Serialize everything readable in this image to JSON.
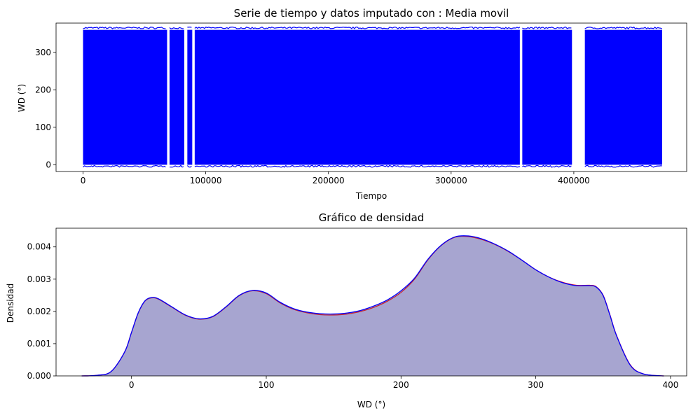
{
  "chart_data": [
    {
      "type": "line",
      "title": "Serie de tiempo y datos imputado con : Media movil",
      "xlabel": "Tiempo",
      "ylabel": "WD (°)",
      "xlim": [
        -22000,
        492000
      ],
      "ylim": [
        -18,
        378
      ],
      "xticks": [
        0,
        100000,
        200000,
        300000,
        400000
      ],
      "xtick_labels": [
        "0",
        "100000",
        "200000",
        "300000",
        "400000"
      ],
      "yticks": [
        0,
        100,
        200,
        300
      ],
      "ytick_labels": [
        "0",
        "100",
        "200",
        "300"
      ],
      "series": [
        {
          "color": "#0000ff",
          "value_range": [
            0,
            360
          ],
          "segments": [
            [
              0,
              68500
            ],
            [
              70500,
              82500
            ],
            [
              85000,
              89000
            ],
            [
              91000,
              356000
            ],
            [
              358000,
              398500
            ],
            [
              409000,
              472000
            ]
          ]
        }
      ],
      "grid": false
    },
    {
      "type": "area",
      "title": "Gráfico de densidad",
      "xlabel": "WD (°)",
      "ylabel": "Densidad",
      "xlim": [
        -56,
        412
      ],
      "ylim": [
        0,
        0.00458
      ],
      "xticks": [
        0,
        100,
        200,
        300,
        400
      ],
      "xtick_labels": [
        "0",
        "100",
        "200",
        "300",
        "400"
      ],
      "yticks": [
        0,
        0.001,
        0.002,
        0.003,
        0.004
      ],
      "ytick_labels": [
        "0.000",
        "0.001",
        "0.002",
        "0.003",
        "0.004"
      ],
      "series": [
        {
          "color": "#ff0000",
          "fill": "#800080",
          "x": [
            -37,
            -25,
            -15,
            -5,
            0,
            5,
            10,
            15,
            20,
            30,
            40,
            50,
            60,
            70,
            80,
            90,
            100,
            110,
            120,
            130,
            140,
            150,
            160,
            170,
            180,
            190,
            200,
            210,
            220,
            230,
            240,
            250,
            260,
            270,
            280,
            290,
            300,
            310,
            320,
            330,
            340,
            345,
            350,
            355,
            360,
            370,
            380,
            395
          ],
          "y": [
            0.0,
            2e-05,
            0.00014,
            0.00075,
            0.00135,
            0.00195,
            0.00232,
            0.00242,
            0.00238,
            0.00213,
            0.00188,
            0.00176,
            0.00183,
            0.00213,
            0.00249,
            0.00264,
            0.00255,
            0.00227,
            0.00207,
            0.00196,
            0.0019,
            0.00189,
            0.00192,
            0.002,
            0.00213,
            0.00232,
            0.00259,
            0.003,
            0.0036,
            0.00405,
            0.0043,
            0.00432,
            0.00423,
            0.00407,
            0.00385,
            0.00358,
            0.00329,
            0.00306,
            0.0029,
            0.00281,
            0.00281,
            0.00276,
            0.0025,
            0.0019,
            0.00125,
            0.00035,
            6e-05,
            0.0
          ]
        },
        {
          "color": "#0000ff",
          "fill": "#1f77b4",
          "x": [
            -37,
            -25,
            -15,
            -5,
            0,
            5,
            10,
            15,
            20,
            30,
            40,
            50,
            60,
            70,
            80,
            90,
            100,
            110,
            120,
            130,
            140,
            150,
            160,
            170,
            180,
            190,
            200,
            210,
            220,
            230,
            240,
            250,
            260,
            270,
            280,
            290,
            300,
            310,
            320,
            330,
            340,
            345,
            350,
            355,
            360,
            370,
            380,
            395
          ],
          "y": [
            0.0,
            2e-05,
            0.00014,
            0.00075,
            0.00135,
            0.00196,
            0.00233,
            0.00243,
            0.00239,
            0.00214,
            0.00189,
            0.00177,
            0.00184,
            0.00214,
            0.0025,
            0.00265,
            0.00257,
            0.00229,
            0.00209,
            0.00198,
            0.00193,
            0.00192,
            0.00195,
            0.00203,
            0.00217,
            0.00236,
            0.00264,
            0.00303,
            0.00362,
            0.00406,
            0.00431,
            0.00434,
            0.00425,
            0.00408,
            0.00386,
            0.00358,
            0.00329,
            0.00306,
            0.00289,
            0.0028,
            0.0028,
            0.00275,
            0.00249,
            0.00189,
            0.00124,
            0.00034,
            6e-05,
            0.0
          ]
        }
      ],
      "grid": false
    }
  ]
}
